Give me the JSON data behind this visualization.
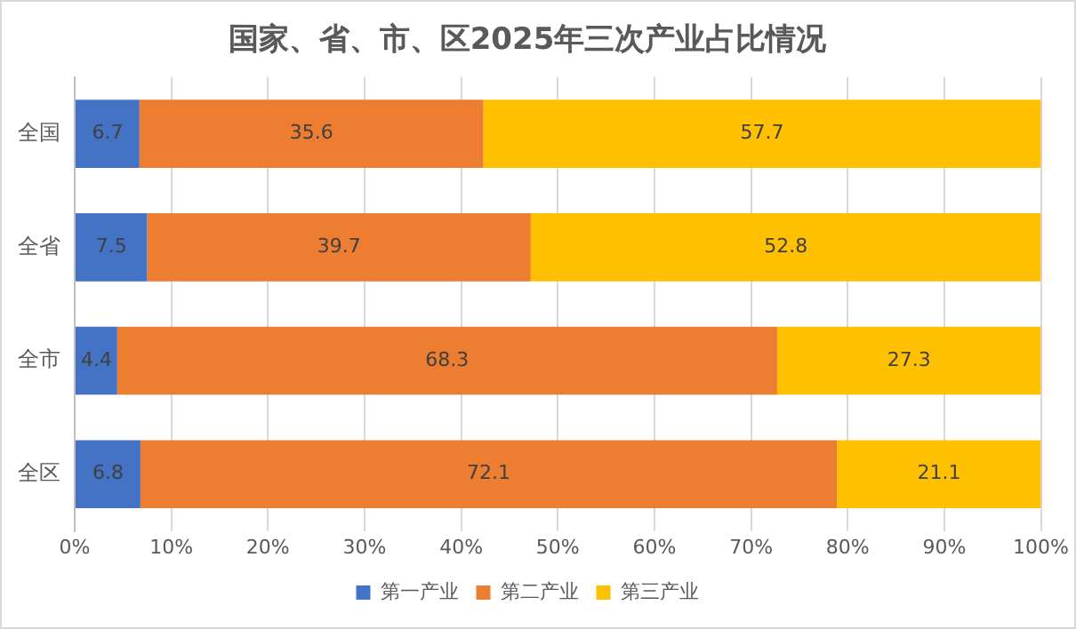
{
  "chart_data": {
    "type": "bar",
    "orientation": "horizontal",
    "stacked": true,
    "title": "国家、省、市、区2025年三次产业占比情况",
    "categories": [
      "全国",
      "全省",
      "全市",
      "全区"
    ],
    "series": [
      {
        "name": "第一产业",
        "color": "#4472c4",
        "values": [
          6.7,
          7.5,
          4.4,
          6.8
        ]
      },
      {
        "name": "第二产业",
        "color": "#ed7d31",
        "values": [
          35.6,
          39.7,
          68.3,
          72.1
        ]
      },
      {
        "name": "第三产业",
        "color": "#ffc000",
        "values": [
          57.7,
          52.8,
          27.3,
          21.1
        ]
      }
    ],
    "xlim": [
      0,
      100
    ],
    "xticks": [
      {
        "value": 0,
        "label": "0%"
      },
      {
        "value": 10,
        "label": "10%"
      },
      {
        "value": 20,
        "label": "20%"
      },
      {
        "value": 30,
        "label": "30%"
      },
      {
        "value": 40,
        "label": "40%"
      },
      {
        "value": 50,
        "label": "50%"
      },
      {
        "value": 60,
        "label": "60%"
      },
      {
        "value": 70,
        "label": "70%"
      },
      {
        "value": 80,
        "label": "80%"
      },
      {
        "value": 90,
        "label": "90%"
      },
      {
        "value": 100,
        "label": "100%"
      }
    ],
    "grid": "x",
    "legend": "bottom",
    "data_labels": true
  }
}
